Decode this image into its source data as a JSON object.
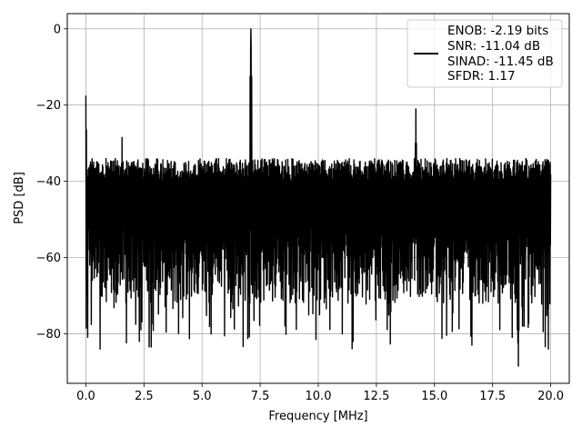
{
  "chart_data": {
    "type": "line",
    "title": "",
    "xlabel": "Frequency [MHz]",
    "ylabel": "PSD [dB]",
    "xlim": [
      -0.8,
      20.8
    ],
    "ylim": [
      -93,
      4
    ],
    "xticks": [
      0.0,
      2.5,
      5.0,
      7.5,
      10.0,
      12.5,
      15.0,
      17.5,
      20.0
    ],
    "xtick_labels": [
      "0.0",
      "2.5",
      "5.0",
      "7.5",
      "10.0",
      "12.5",
      "15.0",
      "17.5",
      "20.0"
    ],
    "yticks": [
      0,
      -20,
      -40,
      -60,
      -80
    ],
    "ytick_labels": [
      "0",
      "−20",
      "−40",
      "−60",
      "−80"
    ],
    "grid": true,
    "legend_position": "top-right",
    "series_color": "#000000",
    "legend_lines": [
      "ENOB: -2.19 bits",
      "SNR: -11.04 dB",
      "SINAD: -11.45 dB",
      "SFDR: 1.17"
    ],
    "noise_floor": {
      "x_range": [
        0.0,
        20.0
      ],
      "upper_db": -34,
      "lower_db": -72,
      "deep_drop_db": -84
    },
    "peaks": [
      {
        "x": 0.0,
        "y": -17.5
      },
      {
        "x": 1.55,
        "y": -28.5
      },
      {
        "x": 7.1,
        "y": 0.0
      },
      {
        "x": 14.2,
        "y": -21.0
      }
    ],
    "dips": [
      {
        "x": 0.6,
        "y": -84.0
      },
      {
        "x": 2.3,
        "y": -82.0
      },
      {
        "x": 9.9,
        "y": -81.5
      },
      {
        "x": 11.5,
        "y": -82.0
      },
      {
        "x": 16.6,
        "y": -83.0
      },
      {
        "x": 18.6,
        "y": -88.5
      },
      {
        "x": 19.9,
        "y": -84.0
      }
    ]
  }
}
